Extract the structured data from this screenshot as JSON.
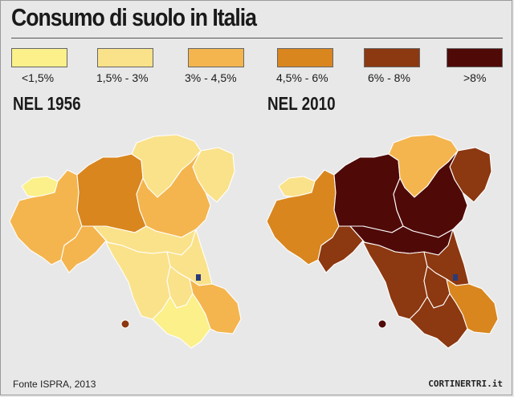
{
  "title": "Consumo di suolo in Italia",
  "legend": [
    {
      "label": "<1,5%",
      "color": "#fbf08a"
    },
    {
      "label": "1,5% - 3%",
      "color": "#fae28a"
    },
    {
      "label": "3% - 4,5%",
      "color": "#f4b54e"
    },
    {
      "label": "4,5% - 6%",
      "color": "#d9861f"
    },
    {
      "label": "6% - 8%",
      "color": "#8c3811"
    },
    {
      "label": ">8%",
      "color": "#4f0a08"
    }
  ],
  "maps": [
    {
      "title": "NEL 1956"
    },
    {
      "title": "NEL 2010"
    }
  ],
  "source": "Fonte ISPRA, 2013",
  "brand": "CORTINERTRI.it"
}
